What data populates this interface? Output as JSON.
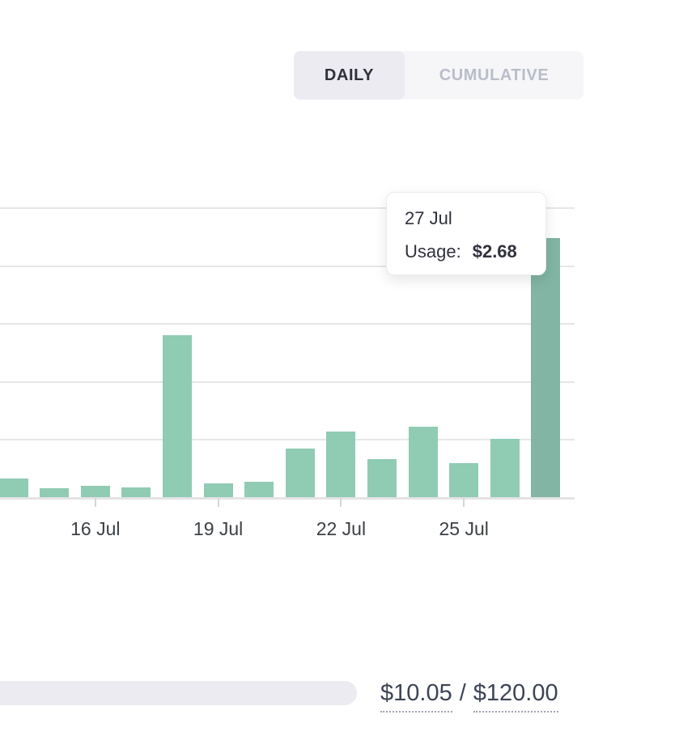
{
  "toggle": {
    "daily_label": "DAILY",
    "cumulative_label": "CUMULATIVE",
    "selected": "DAILY"
  },
  "tooltip": {
    "date": "27 Jul",
    "label": "Usage:",
    "value": "$2.68"
  },
  "chart_data": {
    "type": "bar",
    "x": [
      "14 Jul",
      "15 Jul",
      "16 Jul",
      "17 Jul",
      "18 Jul",
      "19 Jul",
      "20 Jul",
      "21 Jul",
      "22 Jul",
      "23 Jul",
      "24 Jul",
      "25 Jul",
      "26 Jul",
      "27 Jul"
    ],
    "values": [
      0.19,
      0.09,
      0.12,
      0.1,
      1.68,
      0.14,
      0.16,
      0.5,
      0.68,
      0.39,
      0.73,
      0.35,
      0.6,
      2.68
    ],
    "unit": "$",
    "highlighted_index": 13,
    "highlighted_value_label": "$2.68",
    "x_tick_labels": [
      "16 Jul",
      "19 Jul",
      "22 Jul",
      "25 Jul"
    ],
    "x_tick_indices": [
      2,
      5,
      8,
      11
    ],
    "ylim": [
      0,
      3
    ],
    "gridline_step": 0.6,
    "grid": true,
    "legend": false,
    "title": "",
    "xlabel": "",
    "ylabel": "",
    "bar_color": "#90cbb4",
    "bar_color_highlight": "#82b5a3"
  },
  "budget": {
    "used": "$10.05",
    "separator": "/",
    "limit": "$120.00",
    "track_color": "#ebebf1"
  }
}
